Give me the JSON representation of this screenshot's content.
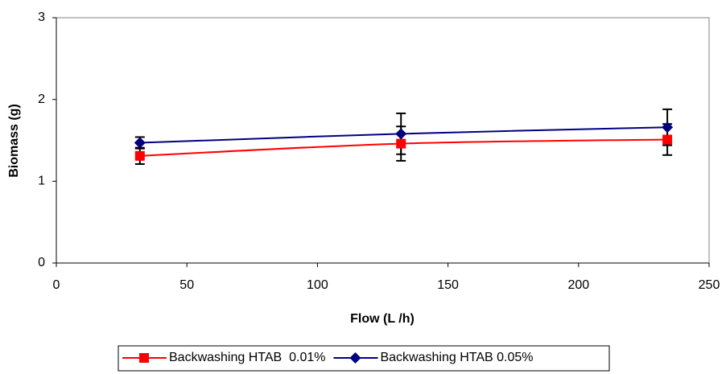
{
  "chart_data": {
    "type": "line",
    "x_label": "Flow (L /h)",
    "y_label": "Biomass (g)",
    "xlim": [
      0,
      250
    ],
    "xticks": [
      0,
      50,
      100,
      150,
      200,
      250
    ],
    "ylim": [
      0,
      3
    ],
    "yticks": [
      0,
      1,
      2,
      3
    ],
    "legend": "bottom",
    "series": [
      {
        "name": "Backwashing HTAB  0.01%",
        "color": "#ff0000",
        "marker": "square",
        "x": [
          32,
          132,
          234
        ],
        "values": [
          1.31,
          1.46,
          1.51
        ],
        "errors": [
          0.1,
          0.21,
          0.19
        ]
      },
      {
        "name": "Backwashing HTAB 0.05%",
        "color": "#000080",
        "marker": "diamond",
        "x": [
          32,
          132,
          234
        ],
        "values": [
          1.47,
          1.58,
          1.66
        ],
        "errors": [
          0.07,
          0.25,
          0.22
        ]
      }
    ]
  }
}
